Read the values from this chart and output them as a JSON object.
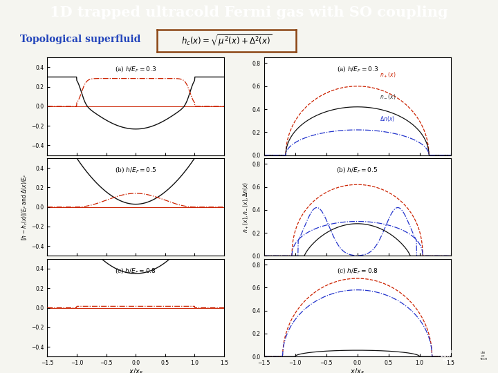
{
  "title": "1D trapped ultracold Fermi gas with SO coupling",
  "title_bg": "#1a0099",
  "title_fg": "#ffffff",
  "subtitle": "Topological superfluid",
  "subtitle_color": "#2244bb",
  "bg_color": "#f5f5f0",
  "left_ylabel": "$[h - h_c(x)]/E_F$ and $\\Delta(x)/E_F$",
  "right_ylabel": "$n_+(x),\\, n_-(x),\\, \\Delta n(x)$",
  "xlabel": "$x/x_F$",
  "xlim": [
    -1.5,
    1.5
  ],
  "ylim_left": [
    -0.5,
    0.5
  ],
  "ylim_right": [
    0.0,
    0.85
  ],
  "shaded_color": "#aabbdd",
  "shaded_alpha": 0.35,
  "line_black": "#111111",
  "line_red": "#cc2200",
  "line_blue": "#2233cc",
  "formula_border": "#8B4513",
  "logo_color": "#cc0000"
}
